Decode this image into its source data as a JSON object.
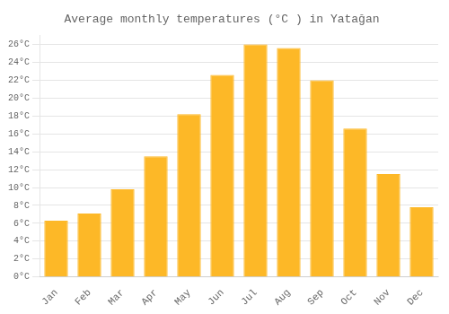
{
  "chart_data": {
    "type": "bar",
    "title": "Average monthly temperatures (°C ) in Yatağan",
    "categories": [
      "Jan",
      "Feb",
      "Mar",
      "Apr",
      "May",
      "Jun",
      "Jul",
      "Aug",
      "Sep",
      "Oct",
      "Nov",
      "Dec"
    ],
    "values": [
      6.3,
      7.1,
      9.8,
      13.5,
      18.2,
      22.6,
      26.0,
      25.6,
      22.0,
      16.6,
      11.5,
      7.8
    ],
    "color": "#FDB827",
    "ylim": [
      0,
      27
    ],
    "yticks": [
      {
        "value": 0,
        "label": "0°C"
      },
      {
        "value": 2,
        "label": "2°C"
      },
      {
        "value": 4,
        "label": "4°C"
      },
      {
        "value": 6,
        "label": "6°C"
      },
      {
        "value": 8,
        "label": "8°C"
      },
      {
        "value": 10,
        "label": "10°C"
      },
      {
        "value": 12,
        "label": "12°C"
      },
      {
        "value": 14,
        "label": "14°C"
      },
      {
        "value": 16,
        "label": "16°C"
      },
      {
        "value": 18,
        "label": "18°C"
      },
      {
        "value": 20,
        "label": "20°C"
      },
      {
        "value": 22,
        "label": "22°C"
      },
      {
        "value": 24,
        "label": "24°C"
      },
      {
        "value": 26,
        "label": "26°C"
      }
    ],
    "grid": true
  }
}
